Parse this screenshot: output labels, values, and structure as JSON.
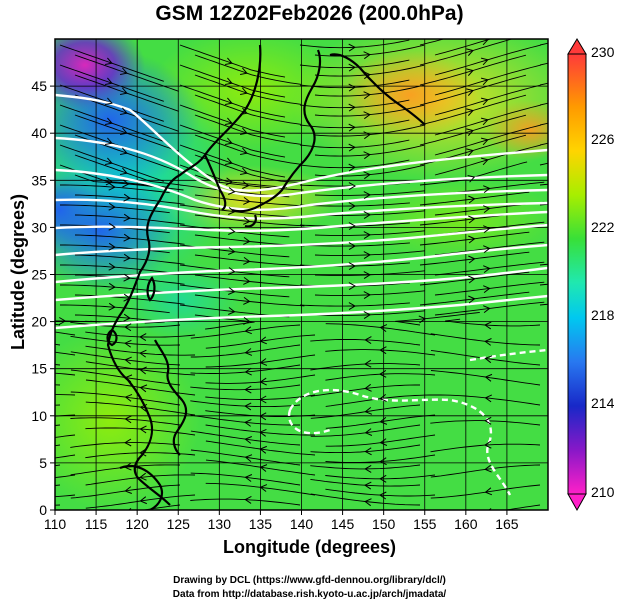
{
  "title": "GSM 12Z02Feb2026 (200.0hPa)",
  "xlabel": "Longitude (degrees)",
  "ylabel": "Latitude (degrees)",
  "credit_line1": "Drawing by DCL (https://www.gfd-dennou.org/library/dcl/)",
  "credit_line2": "Data from http://database.rish.kyoto-u.ac.jp/arch/jmadata/",
  "map": {
    "lon_range": [
      110,
      170
    ],
    "lat_range": [
      0,
      50
    ],
    "lon_ticks": [
      "110",
      "115",
      "120",
      "125",
      "130",
      "135",
      "140",
      "145",
      "150",
      "155",
      "160",
      "165"
    ],
    "lat_ticks": [
      "0",
      "5",
      "10",
      "15",
      "20",
      "25",
      "30",
      "35",
      "40",
      "45"
    ],
    "colorbar": {
      "labels": [
        "230",
        "226",
        "222",
        "218",
        "214",
        "210"
      ],
      "colors": [
        "#ff4040",
        "#ff9a00",
        "#ffd400",
        "#b4f000",
        "#3ce83c",
        "#20e8a0",
        "#00d0e8",
        "#2880f0",
        "#2030c8",
        "#9018c0",
        "#ff20c0"
      ]
    }
  }
}
